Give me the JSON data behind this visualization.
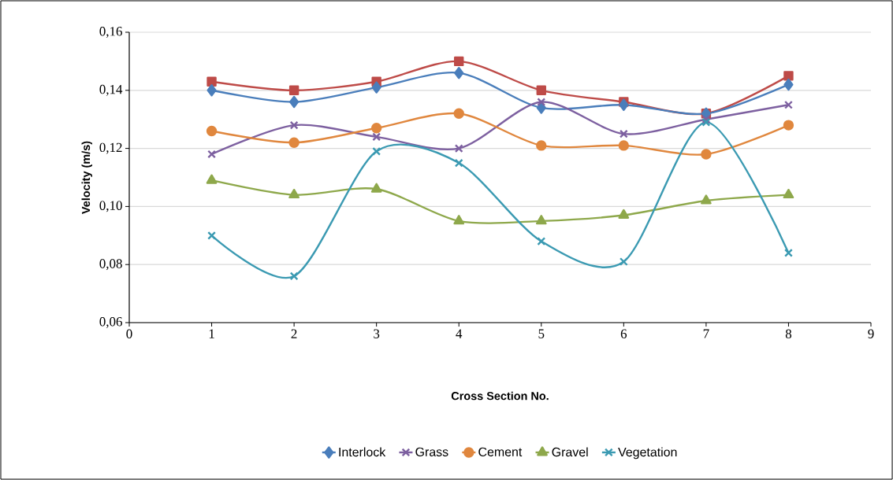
{
  "chart_data": {
    "type": "line",
    "xlabel": "Cross Section No.",
    "ylabel": "Velocity (m/s)",
    "x": [
      1,
      2,
      3,
      4,
      5,
      6,
      7,
      8
    ],
    "xlim": [
      0,
      9
    ],
    "xticks": [
      0,
      1,
      2,
      3,
      4,
      5,
      6,
      7,
      8,
      9
    ],
    "ylim": [
      0.06,
      0.16
    ],
    "yticks": [
      {
        "value": 0.06,
        "label": "0,06"
      },
      {
        "value": 0.08,
        "label": "0,08"
      },
      {
        "value": 0.1,
        "label": "0,10"
      },
      {
        "value": 0.12,
        "label": "0,12"
      },
      {
        "value": 0.14,
        "label": "0,14"
      },
      {
        "value": 0.16,
        "label": "0,16"
      }
    ],
    "grid": "y",
    "legend": "bottom",
    "line_style": "solid",
    "series": [
      {
        "color": "#be4b48",
        "marker": "square",
        "values": [
          0.143,
          0.14,
          0.143,
          0.15,
          0.14,
          0.136,
          0.132,
          0.145
        ]
      },
      {
        "name": "Interlock",
        "color": "#4a7ebb",
        "marker": "diamond",
        "values": [
          0.14,
          0.136,
          0.141,
          0.146,
          0.134,
          0.135,
          0.132,
          0.142
        ]
      },
      {
        "name": "Grass",
        "color": "#7d60a0",
        "marker": "cross",
        "values": [
          0.118,
          0.128,
          0.124,
          0.12,
          0.136,
          0.125,
          0.13,
          0.135
        ]
      },
      {
        "name": "Cement",
        "color": "#e0873e",
        "marker": "circle",
        "values": [
          0.126,
          0.122,
          0.127,
          0.132,
          0.121,
          0.121,
          0.118,
          0.128
        ]
      },
      {
        "name": "Gravel",
        "color": "#8ea84b",
        "marker": "triangle",
        "values": [
          0.109,
          0.104,
          0.106,
          0.095,
          0.095,
          0.097,
          0.102,
          0.104
        ]
      },
      {
        "name": "Vegetation",
        "color": "#3b9ab2",
        "marker": "cross",
        "values": [
          0.09,
          0.076,
          0.119,
          0.115,
          0.088,
          0.081,
          0.129,
          0.084
        ]
      }
    ]
  }
}
